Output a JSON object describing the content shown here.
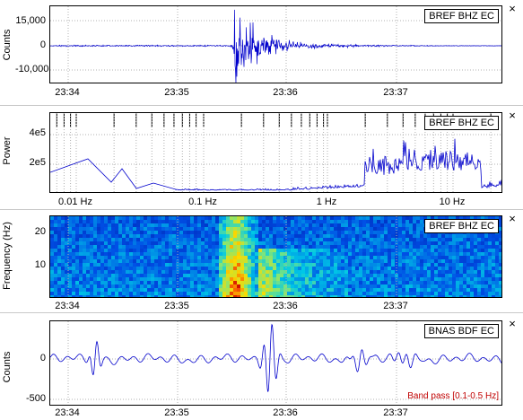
{
  "panels": {
    "seismogram": {
      "title": "BREF BHZ EC",
      "ylabel": "Counts",
      "yticks": [
        "15,000",
        "0",
        "-10,000"
      ],
      "xticks": [
        "23:34",
        "23:35",
        "23:36",
        "23:37"
      ]
    },
    "spectrum": {
      "title": "BREF BHZ EC",
      "ylabel": "Power",
      "yticks": [
        "4e5",
        "2e5"
      ],
      "xticks": [
        "0.01 Hz",
        "0.1 Hz",
        "1 Hz",
        "10 Hz"
      ]
    },
    "spectrogram": {
      "title": "BREF BHZ EC",
      "ylabel": "Frequency (Hz)",
      "yticks": [
        "20",
        "10"
      ],
      "xticks": [
        "23:34",
        "23:35",
        "23:36",
        "23:37"
      ]
    },
    "filtered": {
      "title": "BNAS BDF EC",
      "ylabel": "Counts",
      "yticks": [
        "0",
        "-500"
      ],
      "xticks": [
        "23:34",
        "23:35",
        "23:36",
        "23:37"
      ],
      "bandpass": "Band pass [0.1-0.5 Hz]"
    }
  },
  "close_glyph": "×",
  "colors": {
    "trace": "#0000cc",
    "grid": "#b0b0b0",
    "bandpass": "#c00000"
  }
}
